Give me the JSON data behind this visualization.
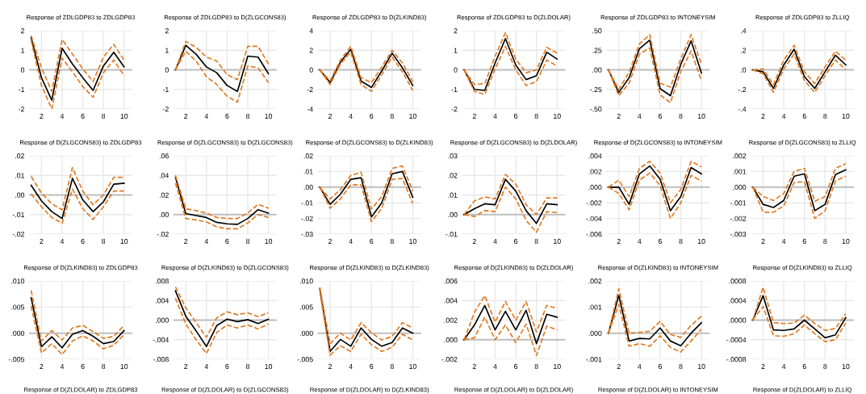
{
  "chart_data": [
    {
      "type": "line",
      "title": "Response of ZDLGDP83 to ZDLGDP83",
      "x": [
        1,
        2,
        3,
        4,
        5,
        6,
        7,
        8,
        9,
        10
      ],
      "xlim": [
        0.8,
        10.8
      ],
      "xticks": [
        2,
        4,
        6,
        8,
        10
      ],
      "ylim": [
        -2,
        2
      ],
      "yticks": [
        -2,
        -1,
        0,
        1,
        2
      ],
      "grid": true,
      "ref_lines": [
        {
          "axis": "y",
          "value": 0,
          "color": "#bfbfbf"
        }
      ],
      "series": [
        {
          "color": "#000000",
          "line_style": "solid",
          "values": [
            1.65,
            -0.4,
            -1.55,
            1.1,
            0.3,
            -0.4,
            -1.05,
            0.2,
            0.9,
            0.15
          ]
        },
        {
          "color": "#e07b24",
          "line_style": "dashed",
          "values": [
            1.75,
            0.1,
            -1.1,
            1.55,
            0.8,
            0.05,
            -0.6,
            0.65,
            1.3,
            0.5
          ]
        },
        {
          "color": "#e07b24",
          "line_style": "dashed",
          "values": [
            1.5,
            -0.8,
            -2.0,
            0.6,
            -0.1,
            -0.85,
            -1.4,
            -0.15,
            0.5,
            -0.3
          ]
        }
      ]
    },
    {
      "type": "line",
      "title": "Response of ZDLGDP83 to D(ZLGCONS83)",
      "x": [
        1,
        2,
        3,
        4,
        5,
        6,
        7,
        8,
        9,
        10
      ],
      "xlim": [
        0.8,
        10.8
      ],
      "xticks": [
        2,
        4,
        6,
        8,
        10
      ],
      "ylim": [
        -2,
        2
      ],
      "yticks": [
        -2,
        -1,
        0,
        1,
        2
      ],
      "grid": true,
      "ref_lines": [
        {
          "axis": "y",
          "value": 0,
          "color": "#bfbfbf"
        }
      ],
      "series": [
        {
          "color": "#000000",
          "line_style": "solid",
          "values": [
            0,
            1.25,
            0.8,
            0.15,
            -0.15,
            -0.8,
            -1.1,
            0.7,
            0.65,
            -0.2
          ]
        },
        {
          "color": "#e07b24",
          "line_style": "dashed",
          "values": [
            0,
            1.45,
            1.15,
            0.65,
            0.45,
            -0.25,
            -0.5,
            1.2,
            1.2,
            0.3
          ]
        },
        {
          "color": "#e07b24",
          "line_style": "dashed",
          "values": [
            0,
            0.95,
            0.45,
            -0.35,
            -0.75,
            -1.35,
            -1.65,
            0.2,
            0.1,
            -0.65
          ]
        }
      ]
    },
    {
      "type": "line",
      "title": "Response of ZDLGDP83 to D(ZLKIND83)",
      "x": [
        1,
        2,
        3,
        4,
        5,
        6,
        7,
        8,
        9,
        10
      ],
      "xlim": [
        0.8,
        10.8
      ],
      "xticks": [
        2,
        4,
        6,
        8,
        10
      ],
      "ylim": [
        -4,
        4
      ],
      "yticks": [
        -4,
        -2,
        0,
        2,
        4
      ],
      "grid": true,
      "ref_lines": [
        {
          "axis": "y",
          "value": 0,
          "color": "#bfbfbf"
        }
      ],
      "series": [
        {
          "color": "#000000",
          "line_style": "solid",
          "values": [
            0,
            -1.3,
            0.8,
            2.1,
            -1.15,
            -1.8,
            -0.1,
            1.7,
            0.2,
            -1.6
          ]
        },
        {
          "color": "#e07b24",
          "line_style": "dashed",
          "values": [
            0,
            -1.1,
            1.0,
            2.4,
            -0.8,
            -1.3,
            0.3,
            2.0,
            0.7,
            -1.2
          ]
        },
        {
          "color": "#e07b24",
          "line_style": "dashed",
          "values": [
            0,
            -1.5,
            0.6,
            1.8,
            -1.5,
            -2.2,
            -0.5,
            1.3,
            -0.2,
            -2.1
          ]
        }
      ]
    },
    {
      "type": "line",
      "title": "Response of ZDLGDP83 to D(ZLDOLAR)",
      "x": [
        1,
        2,
        3,
        4,
        5,
        6,
        7,
        8,
        9,
        10
      ],
      "xlim": [
        0.8,
        10.8
      ],
      "xticks": [
        2,
        4,
        6,
        8,
        10
      ],
      "ylim": [
        -2,
        2
      ],
      "yticks": [
        -2,
        -1,
        0,
        1,
        2
      ],
      "grid": true,
      "ref_lines": [
        {
          "axis": "y",
          "value": 0,
          "color": "#bfbfbf"
        }
      ],
      "series": [
        {
          "color": "#000000",
          "line_style": "solid",
          "values": [
            0,
            -1.0,
            -1.05,
            0.35,
            1.6,
            0.25,
            -0.5,
            -0.3,
            0.9,
            0.55
          ]
        },
        {
          "color": "#e07b24",
          "line_style": "dashed",
          "values": [
            0,
            -0.75,
            -0.7,
            0.7,
            1.9,
            0.55,
            -0.15,
            0.0,
            1.15,
            0.85
          ]
        },
        {
          "color": "#e07b24",
          "line_style": "dashed",
          "values": [
            0,
            -1.1,
            -1.25,
            0.05,
            1.2,
            0.0,
            -0.8,
            -0.6,
            0.5,
            0.2
          ]
        }
      ]
    },
    {
      "type": "line",
      "title": "Response of ZDLGDP83 to INTONEYSIM",
      "x": [
        1,
        2,
        3,
        4,
        5,
        6,
        7,
        8,
        9,
        10
      ],
      "xlim": [
        0.8,
        10.8
      ],
      "xticks": [
        2,
        4,
        6,
        8,
        10
      ],
      "ylim": [
        -0.5,
        0.5
      ],
      "yticks": [
        {
          "value": -0.5,
          "label": "-.50"
        },
        {
          "value": -0.25,
          "label": "-.25"
        },
        {
          "value": 0,
          "label": ".00"
        },
        {
          "value": 0.25,
          "label": ".25"
        },
        {
          "value": 0.5,
          "label": ".50"
        }
      ],
      "grid": true,
      "ref_lines": [
        {
          "axis": "y",
          "value": 0,
          "color": "#bfbfbf"
        }
      ],
      "series": [
        {
          "color": "#000000",
          "line_style": "solid",
          "values": [
            0,
            -0.29,
            -0.1,
            0.27,
            0.38,
            -0.24,
            -0.33,
            0.07,
            0.37,
            -0.04
          ]
        },
        {
          "color": "#e07b24",
          "line_style": "dashed",
          "values": [
            0,
            -0.25,
            -0.03,
            0.33,
            0.45,
            -0.17,
            -0.22,
            0.14,
            0.45,
            0.07
          ]
        },
        {
          "color": "#e07b24",
          "line_style": "dashed",
          "values": [
            0,
            -0.33,
            -0.17,
            0.2,
            0.28,
            -0.32,
            -0.42,
            -0.02,
            0.24,
            -0.14
          ]
        }
      ]
    },
    {
      "type": "line",
      "title": "Response of ZDLGDP83 to ZLLIQ",
      "x": [
        1,
        2,
        3,
        4,
        5,
        6,
        7,
        8,
        9,
        10
      ],
      "xlim": [
        0.8,
        10.8
      ],
      "xticks": [
        2,
        4,
        6,
        8,
        10
      ],
      "ylim": [
        -0.4,
        0.4
      ],
      "yticks": [
        {
          "value": -0.4,
          "label": "-.4"
        },
        {
          "value": -0.2,
          "label": "-.2"
        },
        {
          "value": 0,
          "label": ".0"
        },
        {
          "value": 0.2,
          "label": ".2"
        },
        {
          "value": 0.4,
          "label": ".4"
        }
      ],
      "grid": true,
      "ref_lines": [
        {
          "axis": "y",
          "value": 0,
          "color": "#bfbfbf"
        }
      ],
      "series": [
        {
          "color": "#000000",
          "line_style": "solid",
          "values": [
            0,
            -0.02,
            -0.19,
            0.05,
            0.21,
            -0.07,
            -0.19,
            -0.02,
            0.15,
            0.05
          ]
        },
        {
          "color": "#e07b24",
          "line_style": "dashed",
          "values": [
            0,
            0.01,
            -0.15,
            0.1,
            0.25,
            -0.02,
            -0.14,
            0.03,
            0.19,
            0.1
          ]
        },
        {
          "color": "#e07b24",
          "line_style": "dashed",
          "values": [
            0,
            -0.04,
            -0.23,
            0.01,
            0.16,
            -0.11,
            -0.23,
            -0.06,
            0.1,
            0.0
          ]
        }
      ]
    },
    {
      "type": "line",
      "title": "Response of D(ZLGCONS83) to ZDLGDP83",
      "x": [
        1,
        2,
        3,
        4,
        5,
        6,
        7,
        8,
        9,
        10
      ],
      "xlim": [
        0.8,
        10.8
      ],
      "xticks": [
        2,
        4,
        6,
        8,
        10
      ],
      "ylim": [
        -0.02,
        0.02
      ],
      "yticks": [
        {
          "value": -0.02,
          "label": "-.02"
        },
        {
          "value": -0.01,
          "label": "-.01"
        },
        {
          "value": 0,
          "label": ".00"
        },
        {
          "value": 0.01,
          "label": ".01"
        },
        {
          "value": 0.02,
          "label": ".02"
        }
      ],
      "grid": true,
      "ref_lines": [
        {
          "axis": "y",
          "value": 0,
          "color": "#bfbfbf"
        }
      ],
      "series": [
        {
          "color": "#000000",
          "line_style": "solid",
          "values": [
            0.005,
            -0.003,
            -0.0085,
            -0.012,
            0.0085,
            -0.0025,
            -0.0085,
            -0.0035,
            0.0055,
            0.006
          ]
        },
        {
          "color": "#e07b24",
          "line_style": "dashed",
          "values": [
            0.0095,
            0.001,
            -0.0045,
            -0.0075,
            0.014,
            0.002,
            -0.005,
            0.0,
            0.009,
            0.009
          ]
        },
        {
          "color": "#e07b24",
          "line_style": "dashed",
          "values": [
            0.0005,
            -0.006,
            -0.0115,
            -0.0145,
            0.003,
            -0.007,
            -0.0125,
            -0.006,
            0.002,
            0.002
          ]
        }
      ]
    },
    {
      "type": "line",
      "title": "Response of D(ZLGCONS83) to D(ZLGCONS83)",
      "x": [
        1,
        2,
        3,
        4,
        5,
        6,
        7,
        8,
        9,
        10
      ],
      "xlim": [
        0.8,
        10.8
      ],
      "xticks": [
        2,
        4,
        6,
        8,
        10
      ],
      "ylim": [
        -0.02,
        0.06
      ],
      "yticks": [
        {
          "value": -0.02,
          "label": "-.02"
        },
        {
          "value": 0,
          "label": ".00"
        },
        {
          "value": 0.02,
          "label": ".02"
        },
        {
          "value": 0.04,
          "label": ".04"
        },
        {
          "value": 0.06,
          "label": ".06"
        }
      ],
      "grid": true,
      "ref_lines": [
        {
          "axis": "y",
          "value": 0,
          "color": "#bfbfbf"
        }
      ],
      "series": [
        {
          "color": "#000000",
          "line_style": "solid",
          "values": [
            0.038,
            0.001,
            -0.001,
            -0.003,
            -0.008,
            -0.0095,
            -0.01,
            -0.004,
            0.005,
            0.0015
          ]
        },
        {
          "color": "#e07b24",
          "line_style": "dashed",
          "values": [
            0.04,
            0.006,
            0.004,
            0.0015,
            -0.003,
            -0.004,
            -0.004,
            0.0015,
            0.0105,
            0.0065
          ]
        },
        {
          "color": "#e07b24",
          "line_style": "dashed",
          "values": [
            0.032,
            -0.004,
            -0.0055,
            -0.0075,
            -0.0125,
            -0.0145,
            -0.0145,
            -0.0085,
            0.0,
            -0.003
          ]
        }
      ]
    },
    {
      "type": "line",
      "title": "Response of D(ZLGCONS83) to D(ZLKIND83)",
      "x": [
        1,
        2,
        3,
        4,
        5,
        6,
        7,
        8,
        9,
        10
      ],
      "xlim": [
        0.8,
        10.8
      ],
      "xticks": [
        2,
        4,
        6,
        8,
        10
      ],
      "ylim": [
        -0.03,
        0.02
      ],
      "yticks": [
        {
          "value": -0.03,
          "label": "-.03"
        },
        {
          "value": -0.02,
          "label": "-.02"
        },
        {
          "value": -0.01,
          "label": "-.01"
        },
        {
          "value": 0,
          "label": ".00"
        },
        {
          "value": 0.01,
          "label": ".01"
        },
        {
          "value": 0.02,
          "label": ".02"
        }
      ],
      "grid": true,
      "ref_lines": [
        {
          "axis": "y",
          "value": 0,
          "color": "#bfbfbf"
        }
      ],
      "series": [
        {
          "color": "#000000",
          "line_style": "solid",
          "values": [
            0,
            -0.011,
            -0.0045,
            0.005,
            0.006,
            -0.019,
            -0.01,
            0.0085,
            0.01,
            -0.0065
          ]
        },
        {
          "color": "#e07b24",
          "line_style": "dashed",
          "values": [
            0,
            -0.0075,
            -0.0015,
            0.0075,
            0.0095,
            -0.014,
            -0.006,
            0.012,
            0.0135,
            -0.0025
          ]
        },
        {
          "color": "#e07b24",
          "line_style": "dashed",
          "values": [
            0,
            -0.0135,
            -0.0075,
            0.0015,
            0.0015,
            -0.022,
            -0.0135,
            0.005,
            0.0055,
            -0.0105
          ]
        }
      ]
    },
    {
      "type": "line",
      "title": "Response of D(ZLGCONS83) to D(ZLDOLAR)",
      "x": [
        1,
        2,
        3,
        4,
        5,
        6,
        7,
        8,
        9,
        10
      ],
      "xlim": [
        0.8,
        10.8
      ],
      "xticks": [
        2,
        4,
        6,
        8,
        10
      ],
      "ylim": [
        -0.01,
        0.03
      ],
      "yticks": [
        {
          "value": -0.01,
          "label": "-.01"
        },
        {
          "value": 0,
          "label": ".00"
        },
        {
          "value": 0.01,
          "label": ".01"
        },
        {
          "value": 0.02,
          "label": ".02"
        },
        {
          "value": 0.03,
          "label": ".03"
        }
      ],
      "grid": true,
      "ref_lines": [
        {
          "axis": "y",
          "value": 0,
          "color": "#bfbfbf"
        }
      ],
      "series": [
        {
          "color": "#000000",
          "line_style": "solid",
          "values": [
            0,
            0.003,
            0.0055,
            0.005,
            0.018,
            0.012,
            0.002,
            -0.0045,
            0.0055,
            0.005
          ]
        },
        {
          "color": "#e07b24",
          "line_style": "dashed",
          "values": [
            0,
            0.007,
            0.009,
            0.008,
            0.0205,
            0.0155,
            0.005,
            0.0,
            0.0085,
            0.0085
          ]
        },
        {
          "color": "#e07b24",
          "line_style": "dashed",
          "values": [
            0,
            -0.001,
            0.002,
            0.0015,
            0.014,
            0.008,
            -0.003,
            -0.009,
            0.0015,
            0.001
          ]
        }
      ]
    },
    {
      "type": "line",
      "title": "Response of D(ZLGCONS83) to INTONEYSIM",
      "x": [
        1,
        2,
        3,
        4,
        5,
        6,
        7,
        8,
        9,
        10
      ],
      "xlim": [
        0.8,
        10.8
      ],
      "xticks": [
        2,
        4,
        6,
        8,
        10
      ],
      "ylim": [
        -0.006,
        0.004
      ],
      "yticks": [
        {
          "value": -0.006,
          "label": "-.006"
        },
        {
          "value": -0.004,
          "label": "-.004"
        },
        {
          "value": -0.002,
          "label": "-.002"
        },
        {
          "value": 0,
          "label": ".000"
        },
        {
          "value": 0.002,
          "label": ".002"
        },
        {
          "value": 0.004,
          "label": ".004"
        }
      ],
      "grid": true,
      "ref_lines": [
        {
          "axis": "y",
          "value": 0,
          "color": "#bfbfbf"
        }
      ],
      "series": [
        {
          "color": "#000000",
          "line_style": "solid",
          "values": [
            0,
            0.0,
            -0.0022,
            0.0017,
            0.0027,
            0.001,
            -0.003,
            -0.0012,
            0.0025,
            0.0017
          ]
        },
        {
          "color": "#e07b24",
          "line_style": "dashed",
          "values": [
            0,
            0.0009,
            -0.0012,
            0.0024,
            0.0033,
            0.0018,
            -0.002,
            -0.0003,
            0.0033,
            0.0026
          ]
        },
        {
          "color": "#e07b24",
          "line_style": "dashed",
          "values": [
            0,
            -0.0008,
            -0.0029,
            0.0009,
            0.0018,
            0.0002,
            -0.004,
            -0.002,
            0.0015,
            0.0008
          ]
        }
      ]
    },
    {
      "type": "line",
      "title": "Response of D(ZLGCONS83) to ZLLIQ",
      "x": [
        1,
        2,
        3,
        4,
        5,
        6,
        7,
        8,
        9,
        10
      ],
      "xlim": [
        0.8,
        10.8
      ],
      "xticks": [
        2,
        4,
        6,
        8,
        10
      ],
      "ylim": [
        -0.003,
        0.002
      ],
      "yticks": [
        {
          "value": -0.003,
          "label": "-.003"
        },
        {
          "value": -0.002,
          "label": "-.002"
        },
        {
          "value": -0.001,
          "label": "-.001"
        },
        {
          "value": 0,
          "label": ".000"
        },
        {
          "value": 0.001,
          "label": ".001"
        },
        {
          "value": 0.002,
          "label": ".002"
        }
      ],
      "grid": true,
      "ref_lines": [
        {
          "axis": "y",
          "value": 0,
          "color": "#bfbfbf"
        }
      ],
      "series": [
        {
          "color": "#000000",
          "line_style": "solid",
          "values": [
            0,
            -0.0011,
            -0.0013,
            -0.00085,
            0.0007,
            0.00085,
            -0.0015,
            -0.0011,
            0.0008,
            0.0011
          ]
        },
        {
          "color": "#e07b24",
          "line_style": "dashed",
          "values": [
            0,
            -0.0006,
            -0.00085,
            -0.0004,
            0.001,
            0.0012,
            -0.0009,
            -0.0006,
            0.0012,
            0.0015
          ]
        },
        {
          "color": "#e07b24",
          "line_style": "dashed",
          "values": [
            0,
            -0.0016,
            -0.0016,
            -0.0012,
            0.0003,
            0.00035,
            -0.002,
            -0.0015,
            0.0004,
            0.0007
          ]
        }
      ]
    },
    {
      "type": "line",
      "title": "Response of D(ZLKIND83) to ZDLGDP83",
      "x": [
        1,
        2,
        3,
        4,
        5,
        6,
        7,
        8,
        9,
        10
      ],
      "xlim": [
        0.8,
        10.8
      ],
      "xticks": [
        2,
        4,
        6,
        8,
        10
      ],
      "ylim": [
        -0.005,
        0.01
      ],
      "yticks": [
        {
          "value": -0.005,
          "label": "-.005"
        },
        {
          "value": 0,
          "label": ".000"
        },
        {
          "value": 0.005,
          "label": ".005"
        },
        {
          "value": 0.01,
          "label": ".010"
        }
      ],
      "grid": true,
      "ref_lines": [
        {
          "axis": "y",
          "value": 0,
          "color": "#bfbfbf"
        }
      ],
      "series": [
        {
          "color": "#000000",
          "line_style": "solid",
          "values": [
            0.0068,
            -0.0026,
            -0.0007,
            -0.0028,
            -0.0002,
            0.0005,
            -0.0006,
            -0.002,
            -0.0016,
            0.0005
          ]
        },
        {
          "color": "#e07b24",
          "line_style": "dashed",
          "values": [
            0.0082,
            -0.0015,
            0.0005,
            -0.0013,
            0.001,
            0.0015,
            0.0003,
            -0.001,
            -0.0006,
            0.0015
          ]
        },
        {
          "color": "#e07b24",
          "line_style": "dashed",
          "values": [
            0.0052,
            -0.0038,
            -0.002,
            -0.0041,
            -0.0015,
            -0.0005,
            -0.0015,
            -0.003,
            -0.0023,
            -0.0003
          ]
        }
      ]
    },
    {
      "type": "line",
      "title": "Response of D(ZLKIND83) to D(ZLGCONS83)",
      "x": [
        1,
        2,
        3,
        4,
        5,
        6,
        7,
        8,
        9,
        10
      ],
      "xlim": [
        0.8,
        10.8
      ],
      "xticks": [
        2,
        4,
        6,
        8,
        10
      ],
      "ylim": [
        -0.008,
        0.008
      ],
      "yticks": [
        {
          "value": -0.008,
          "label": "-.008"
        },
        {
          "value": -0.004,
          "label": "-.004"
        },
        {
          "value": 0,
          "label": ".000"
        },
        {
          "value": 0.004,
          "label": ".004"
        },
        {
          "value": 0.008,
          "label": ".008"
        }
      ],
      "grid": true,
      "ref_lines": [
        {
          "axis": "y",
          "value": 0,
          "color": "#bfbfbf"
        }
      ],
      "series": [
        {
          "color": "#000000",
          "line_style": "solid",
          "values": [
            0.006,
            0.0008,
            -0.0022,
            -0.0054,
            -0.0011,
            0.0002,
            -0.0003,
            0.0001,
            -0.0007,
            0.0002
          ]
        },
        {
          "color": "#e07b24",
          "line_style": "dashed",
          "values": [
            0.0068,
            0.0025,
            -0.0005,
            -0.0035,
            0.0005,
            0.0017,
            0.0011,
            0.0015,
            0.0007,
            0.0015
          ]
        },
        {
          "color": "#e07b24",
          "line_style": "dashed",
          "values": [
            0.0045,
            -0.0008,
            -0.004,
            -0.0068,
            -0.0025,
            -0.001,
            -0.0016,
            -0.001,
            -0.0018,
            -0.0008
          ]
        }
      ]
    },
    {
      "type": "line",
      "title": "Response of D(ZLKIND83) to D(ZLKIND83)",
      "x": [
        1,
        2,
        3,
        4,
        5,
        6,
        7,
        8,
        9,
        10
      ],
      "xlim": [
        0.8,
        10.8
      ],
      "xticks": [
        2,
        4,
        6,
        8,
        10
      ],
      "ylim": [
        -0.005,
        0.01
      ],
      "yticks": [
        {
          "value": -0.005,
          "label": "-.005"
        },
        {
          "value": 0,
          "label": ".000"
        },
        {
          "value": 0.005,
          "label": ".005"
        },
        {
          "value": 0.01,
          "label": ".010"
        }
      ],
      "grid": true,
      "ref_lines": [
        {
          "axis": "y",
          "value": 0,
          "color": "#bfbfbf"
        }
      ],
      "series": [
        {
          "color": "#000000",
          "line_style": "solid",
          "values": [
            0.0085,
            -0.0035,
            -0.0012,
            -0.0025,
            0.001,
            -0.0012,
            -0.0025,
            -0.0018,
            0.001,
            0.0
          ]
        },
        {
          "color": "#e07b24",
          "line_style": "dashed",
          "values": [
            0.0088,
            -0.002,
            0.0,
            -0.0013,
            0.002,
            0.0001,
            -0.0013,
            -0.0006,
            0.002,
            0.001
          ]
        },
        {
          "color": "#e07b24",
          "line_style": "dashed",
          "values": [
            0.008,
            -0.0042,
            -0.0024,
            -0.0035,
            -0.0002,
            -0.0022,
            -0.0035,
            -0.0027,
            -0.0002,
            -0.0013
          ]
        }
      ]
    },
    {
      "type": "line",
      "title": "Response of D(ZLKIND83) to D(ZLDOLAR)",
      "x": [
        1,
        2,
        3,
        4,
        5,
        6,
        7,
        8,
        9,
        10
      ],
      "xlim": [
        0.8,
        10.8
      ],
      "xticks": [
        2,
        4,
        6,
        8,
        10
      ],
      "ylim": [
        -0.002,
        0.006
      ],
      "yticks": [
        {
          "value": -0.002,
          "label": "-.002"
        },
        {
          "value": 0,
          "label": ".000"
        },
        {
          "value": 0.002,
          "label": ".002"
        },
        {
          "value": 0.004,
          "label": ".004"
        },
        {
          "value": 0.006,
          "label": ".006"
        }
      ],
      "grid": true,
      "ref_lines": [
        {
          "axis": "y",
          "value": 0,
          "color": "#bfbfbf"
        }
      ],
      "series": [
        {
          "color": "#000000",
          "line_style": "solid",
          "values": [
            0,
            0.0015,
            0.0035,
            0.001,
            0.0029,
            0.001,
            0.003,
            -0.0004,
            0.0026,
            0.0023
          ]
        },
        {
          "color": "#e07b24",
          "line_style": "dashed",
          "values": [
            0,
            0.0028,
            0.0045,
            0.0018,
            0.0039,
            0.002,
            0.0039,
            0.0008,
            0.0035,
            0.0032
          ]
        },
        {
          "color": "#e07b24",
          "line_style": "dashed",
          "values": [
            0,
            0.0002,
            0.0023,
            0.0,
            0.0015,
            -0.0003,
            0.0016,
            -0.0016,
            0.0014,
            0.001
          ]
        }
      ]
    },
    {
      "type": "line",
      "title": "Response of D(ZLKIND83) to INTONEYSIM",
      "x": [
        1,
        2,
        3,
        4,
        5,
        6,
        7,
        8,
        9,
        10
      ],
      "xlim": [
        0.8,
        10.8
      ],
      "xticks": [
        2,
        4,
        6,
        8,
        10
      ],
      "ylim": [
        -0.001,
        0.002
      ],
      "yticks": [
        {
          "value": -0.001,
          "label": "-.001"
        },
        {
          "value": 0,
          "label": ".000"
        },
        {
          "value": 0.001,
          "label": ".001"
        },
        {
          "value": 0.002,
          "label": ".002"
        }
      ],
      "grid": true,
      "ref_lines": [
        {
          "axis": "y",
          "value": 0,
          "color": "#bfbfbf"
        }
      ],
      "series": [
        {
          "color": "#000000",
          "line_style": "solid",
          "values": [
            0,
            0.00145,
            -0.0003,
            -0.0002,
            -0.00022,
            0.0002,
            -0.0003,
            -0.00048,
            0.0,
            0.0004
          ]
        },
        {
          "color": "#e07b24",
          "line_style": "dashed",
          "values": [
            0,
            0.0017,
            0.0,
            3e-05,
            7e-05,
            0.00045,
            -5e-05,
            -0.00016,
            0.0003,
            0.00065
          ]
        },
        {
          "color": "#e07b24",
          "line_style": "dashed",
          "values": [
            0,
            0.0011,
            -0.0005,
            -0.0004,
            -0.0005,
            -0.0001,
            -0.00055,
            -0.00072,
            -0.0003,
            0.00015
          ]
        }
      ]
    },
    {
      "type": "line",
      "title": "Response of D(ZLKIND83) to ZLLIQ",
      "x": [
        1,
        2,
        3,
        4,
        5,
        6,
        7,
        8,
        9,
        10
      ],
      "xlim": [
        0.8,
        10.8
      ],
      "xticks": [
        2,
        4,
        6,
        8,
        10
      ],
      "ylim": [
        -0.0008,
        0.0008
      ],
      "yticks": [
        {
          "value": -0.0008,
          "label": "-.0008"
        },
        {
          "value": -0.0004,
          "label": "-.0004"
        },
        {
          "value": 0,
          "label": ".0000"
        },
        {
          "value": 0.0004,
          "label": ".0004"
        },
        {
          "value": 0.0008,
          "label": ".0008"
        }
      ],
      "grid": true,
      "ref_lines": [
        {
          "axis": "y",
          "value": 0,
          "color": "#bfbfbf"
        }
      ],
      "series": [
        {
          "color": "#000000",
          "line_style": "solid",
          "values": [
            0,
            0.0005,
            -0.0002,
            -0.00021,
            -0.00018,
            0.0,
            -0.00018,
            -0.00036,
            -0.0003,
            5e-05
          ]
        },
        {
          "color": "#e07b24",
          "line_style": "dashed",
          "values": [
            0,
            0.00067,
            -5e-05,
            -7e-05,
            -6e-05,
            0.0001,
            -7e-05,
            -0.00021,
            -0.00017,
            0.00013
          ]
        },
        {
          "color": "#e07b24",
          "line_style": "dashed",
          "values": [
            0,
            0.00028,
            -0.00032,
            -0.00033,
            -0.00028,
            -0.0001,
            -0.00028,
            -0.00044,
            -0.0004,
            -6e-05
          ]
        }
      ]
    },
    {
      "type": "other",
      "title": "Response of D(ZLDOLAR) to ZDLGDP83"
    },
    {
      "type": "other",
      "title": "Response of D(ZLDOLAR) to D(ZLGCONS83)"
    },
    {
      "type": "other",
      "title": "Response of D(ZLDOLAR) to D(ZLKIND83)"
    },
    {
      "type": "other",
      "title": "Response of D(ZLDOLAR) to D(ZLDOLAR)"
    },
    {
      "type": "other",
      "title": "Response of D(ZLDOLAR) to INTONEYSIM"
    },
    {
      "type": "other",
      "title": "Response of D(ZLDOLAR) to ZLLIQ"
    }
  ]
}
